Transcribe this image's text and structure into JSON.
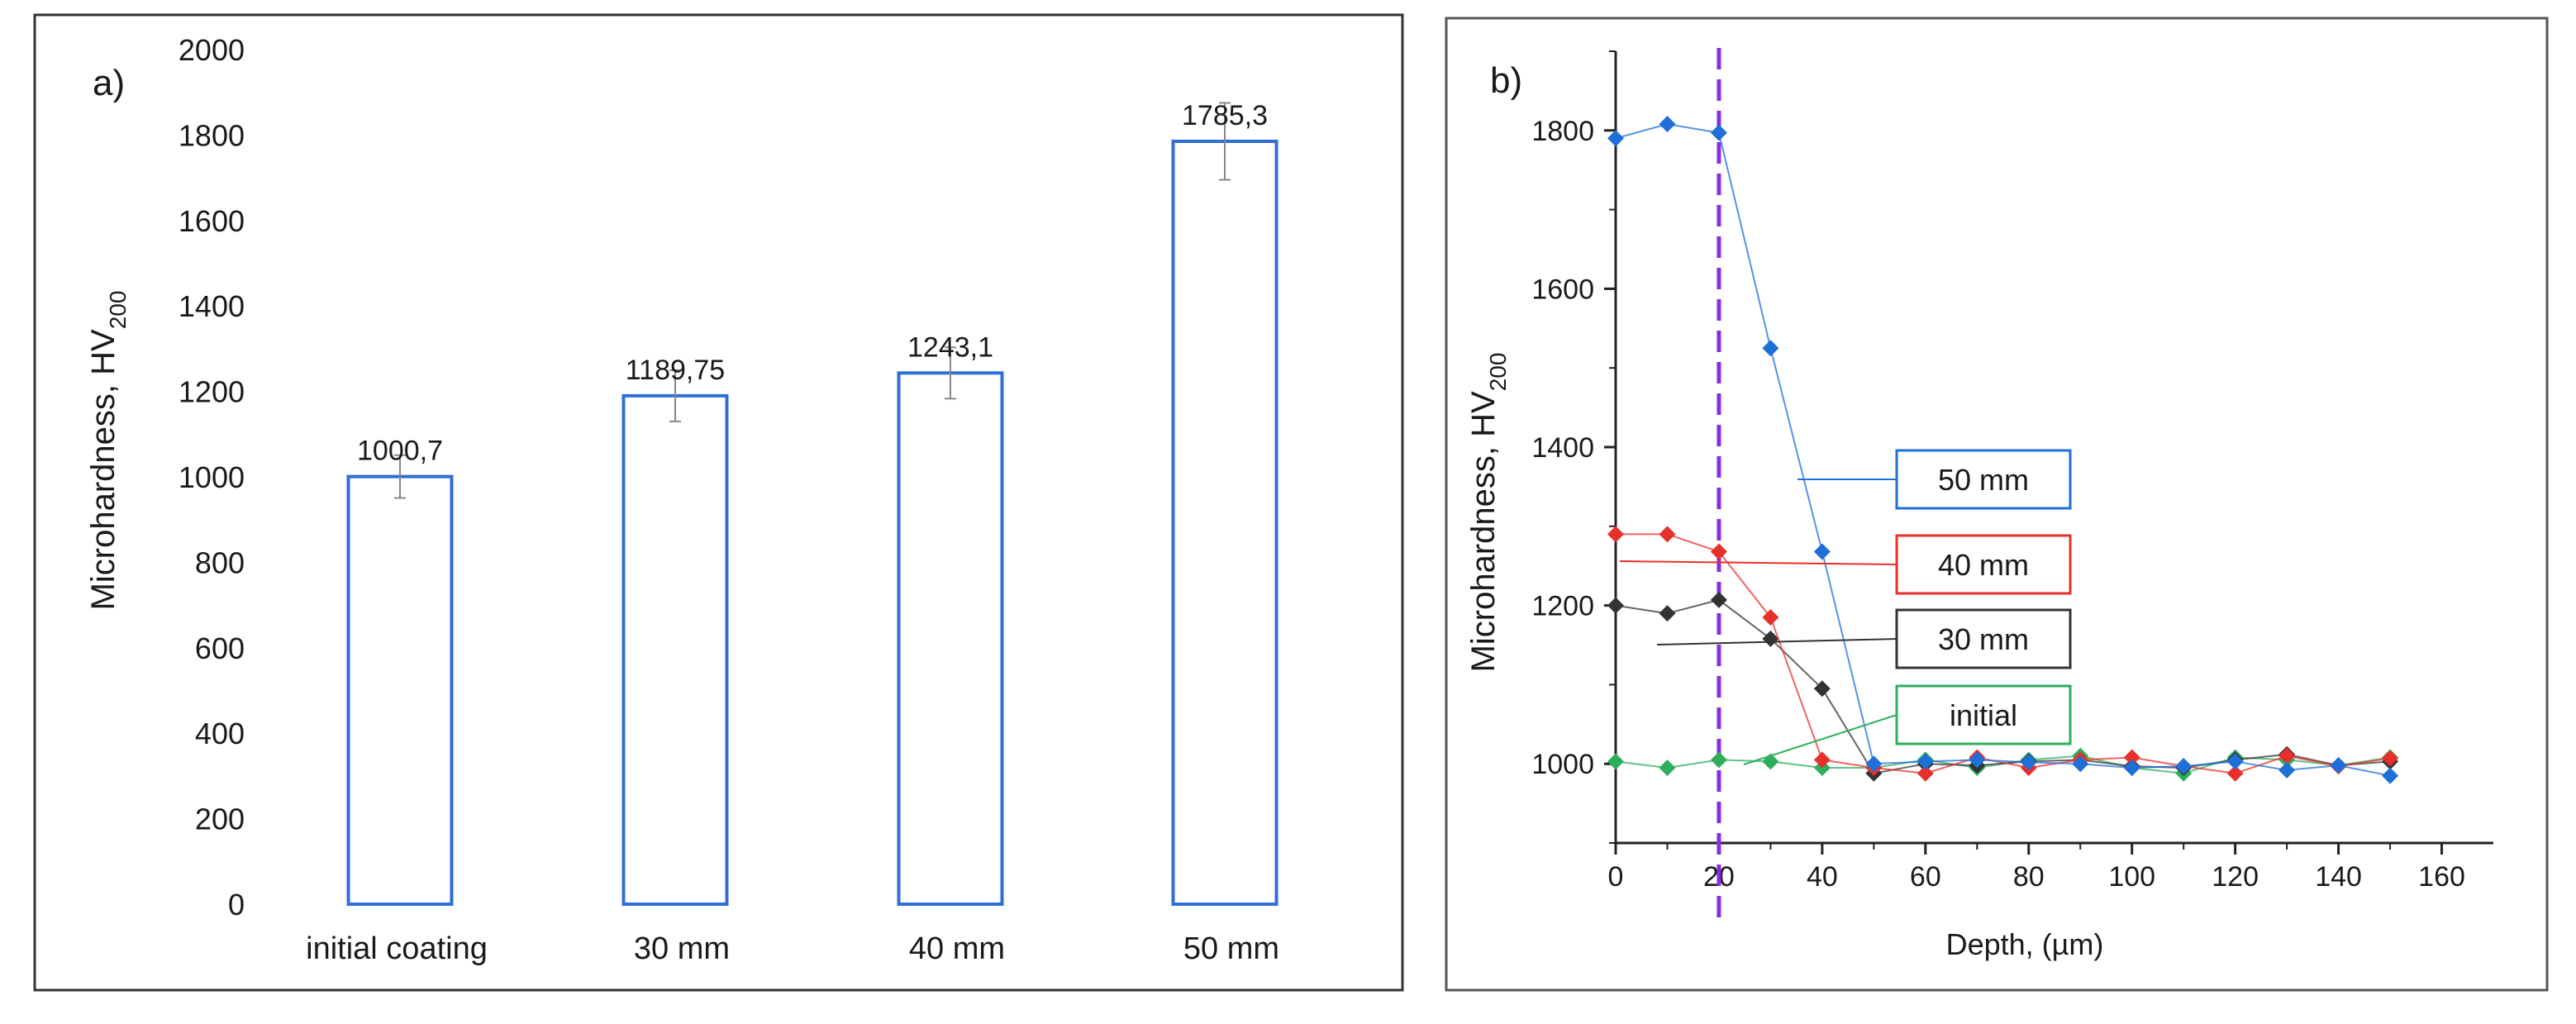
{
  "colors": {
    "bar_outline": "#2f6fd6",
    "blue": "#1f6fd8",
    "red": "#e8302a",
    "black": "#333333",
    "green": "#2eae5c",
    "purple_line": "#8a2be2",
    "axis": "#222222",
    "errorbar": "#888888",
    "frame": "#333333"
  },
  "chart_data": [
    {
      "type": "bar",
      "panel_label": "a)",
      "categories": [
        "initial coating",
        "30 mm",
        "40 mm",
        "50 mm"
      ],
      "values": [
        1000.7,
        1189.75,
        1243.1,
        1785.3
      ],
      "value_labels": [
        "1000,7",
        "1189,75",
        "1243,1",
        "1785,3"
      ],
      "errors": [
        50,
        60,
        60,
        90
      ],
      "ylabel_main": "Microhardness,  HV",
      "ylabel_sub": "200",
      "ylim": [
        0,
        2000
      ],
      "yticks": [
        0,
        200,
        400,
        600,
        800,
        1000,
        1200,
        1400,
        1600,
        1800,
        2000
      ]
    },
    {
      "type": "line",
      "panel_label": "b)",
      "xlabel": "Depth, (µm)",
      "ylabel_main": "Microhardness,  HV",
      "ylabel_sub": "200",
      "xlim": [
        0,
        170
      ],
      "ylim": [
        900,
        1900
      ],
      "xticks": [
        0,
        20,
        40,
        60,
        80,
        100,
        120,
        140,
        160
      ],
      "yticks": [
        1000,
        1200,
        1400,
        1600,
        1800
      ],
      "vertical_line_x": 20,
      "series": [
        {
          "name": "50 mm",
          "color_key": "blue",
          "x": [
            0,
            10,
            20,
            30,
            40,
            50,
            60,
            70,
            80,
            90,
            100,
            110,
            120,
            130,
            140,
            150
          ],
          "y": [
            1790,
            1808,
            1797,
            1525,
            1268,
            1000,
            1003,
            1005,
            1002,
            1000,
            995,
            997,
            1003,
            992,
            998,
            985
          ]
        },
        {
          "name": "40 mm",
          "color_key": "red",
          "x": [
            0,
            10,
            20,
            30,
            40,
            50,
            60,
            70,
            80,
            90,
            100,
            110,
            120,
            130,
            140,
            150
          ],
          "y": [
            1290,
            1290,
            1268,
            1185,
            1005,
            995,
            988,
            1008,
            995,
            1005,
            1008,
            997,
            988,
            1010,
            997,
            1007
          ]
        },
        {
          "name": "30 mm",
          "color_key": "black",
          "x": [
            0,
            10,
            20,
            30,
            40,
            50,
            60,
            70,
            80,
            90,
            100,
            110,
            120,
            130,
            140,
            150
          ],
          "y": [
            1200,
            1190,
            1207,
            1158,
            1095,
            988,
            1000,
            998,
            1003,
            1005,
            997,
            995,
            1005,
            1012,
            998,
            1003
          ]
        },
        {
          "name": "initial",
          "color_key": "green",
          "x": [
            0,
            10,
            20,
            30,
            40,
            50,
            60,
            70,
            80,
            90,
            100,
            110,
            120,
            130,
            140,
            150
          ],
          "y": [
            1003,
            995,
            1005,
            1003,
            995,
            995,
            1005,
            995,
            1005,
            1010,
            995,
            988,
            1008,
            1005,
            998,
            1008
          ]
        }
      ]
    }
  ]
}
